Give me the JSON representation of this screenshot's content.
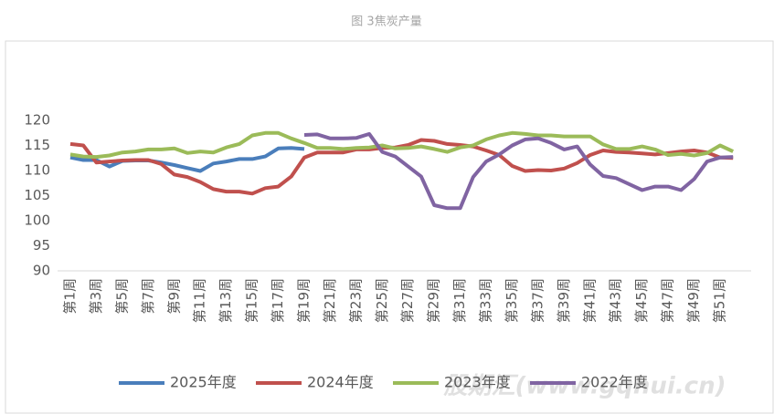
{
  "chart_data": {
    "type": "line",
    "title": "图 3焦炭产量",
    "categories": [
      "第1周",
      null,
      "第3周",
      null,
      "第5周",
      null,
      "第7周",
      null,
      "第9周",
      null,
      "第11周",
      null,
      "第13周",
      null,
      "第15周",
      null,
      "第17周",
      null,
      "第19周",
      null,
      "第21周",
      null,
      "第23周",
      null,
      "第25周",
      null,
      "第27周",
      null,
      "第29周",
      null,
      "第31周",
      null,
      "第33周",
      null,
      "第35周",
      null,
      "第37周",
      null,
      "第39周",
      null,
      "第41周",
      null,
      "第43周",
      null,
      "第45周",
      null,
      "第47周",
      null,
      "第49周",
      null,
      "第51周",
      null
    ],
    "series": [
      {
        "name": "2025年度",
        "color": "#4a7ebb",
        "values": [
          112.6,
          112.1,
          112.1,
          110.8,
          111.9,
          112,
          112,
          111.6,
          111.1,
          110.5,
          109.9,
          111.4,
          111.8,
          112.3,
          112.3,
          112.8,
          114.4,
          114.5,
          114.3,
          null,
          null,
          null,
          null,
          null,
          null,
          null,
          null,
          null,
          null,
          null,
          null,
          null,
          null,
          null,
          null,
          null,
          null,
          null,
          null,
          null,
          null,
          null,
          null,
          null,
          null,
          null,
          null,
          null,
          null,
          null,
          null,
          null
        ]
      },
      {
        "name": "2024年度",
        "color": "#c0504d",
        "values": [
          115.3,
          115,
          111.6,
          111.8,
          112,
          112.1,
          112.1,
          111.3,
          109.2,
          108.7,
          107.7,
          106.3,
          105.8,
          105.8,
          105.4,
          106.5,
          106.8,
          108.8,
          112.6,
          113.6,
          113.6,
          113.6,
          114.2,
          114.2,
          114.5,
          114.6,
          115.1,
          116.1,
          115.9,
          115.3,
          115.1,
          114.8,
          114,
          113.1,
          110.9,
          109.9,
          110.1,
          110,
          110.4,
          111.5,
          113.1,
          114,
          113.7,
          113.6,
          113.4,
          113.2,
          113.5,
          113.8,
          114,
          113.6,
          112.6,
          112.5
        ]
      },
      {
        "name": "2023年度",
        "color": "#9bbb59",
        "values": [
          113.2,
          112.8,
          112.7,
          113,
          113.6,
          113.8,
          114.2,
          114.2,
          114.4,
          113.5,
          113.8,
          113.6,
          114.6,
          115.3,
          117,
          117.5,
          117.5,
          116.4,
          115.5,
          114.5,
          114.5,
          114.3,
          114.5,
          114.6,
          115,
          114.4,
          114.5,
          114.8,
          114.3,
          113.7,
          114.6,
          115,
          116.2,
          117,
          117.5,
          117.3,
          117,
          117,
          116.8,
          116.8,
          116.8,
          115.2,
          114.3,
          114.3,
          114.8,
          114.2,
          113.1,
          113.3,
          113,
          113.5,
          115,
          113.8
        ]
      },
      {
        "name": "2022年度",
        "color": "#8064a2",
        "values": [
          null,
          null,
          null,
          null,
          null,
          null,
          null,
          null,
          null,
          null,
          null,
          null,
          null,
          null,
          null,
          null,
          null,
          null,
          117.1,
          117.2,
          116.4,
          116.4,
          116.5,
          117.3,
          113.7,
          112.8,
          110.8,
          108.8,
          103.1,
          102.5,
          102.5,
          108.7,
          111.8,
          113.2,
          115,
          116.2,
          116.4,
          115.5,
          114.2,
          114.8,
          111.2,
          108.9,
          108.5,
          107.3,
          106.1,
          106.8,
          106.8,
          106.1,
          108.3,
          111.8,
          112.6,
          112.7
        ]
      }
    ],
    "ylim": [
      90,
      120
    ],
    "yticks": [
      90,
      95,
      100,
      105,
      110,
      115,
      120
    ],
    "grid": false,
    "watermark": "股期汇(www.gqhui.cn)"
  }
}
